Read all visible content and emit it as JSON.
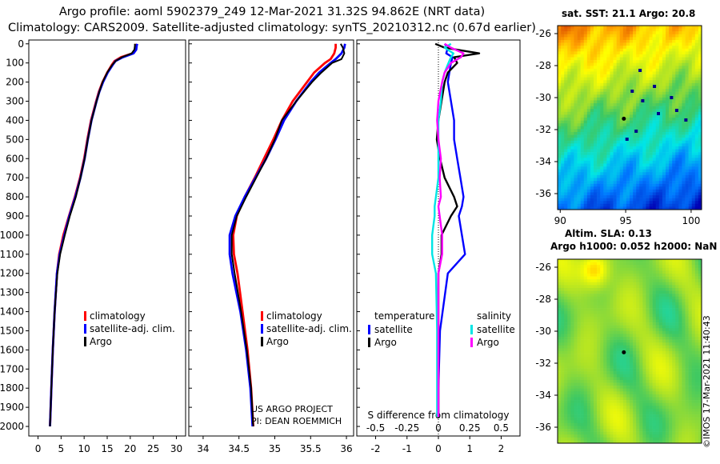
{
  "header": {
    "line1": "Argo profile: aoml 5902379_249 12-Mar-2021 31.32S 94.862E (NRT data)",
    "line2": "Climatology: CARS2009. Satellite-adjusted climatology: synTS_20210312.nc (0.67d earlier)"
  },
  "colors": {
    "climatology": "#ff0000",
    "satellite_adj": "#0000ff",
    "argo": "#000000",
    "salinity_satellite": "#00e5e5",
    "salinity_argo": "#ff00ff"
  },
  "chart_data": [
    {
      "id": "temperature",
      "type": "line",
      "xlim": [
        -2,
        32
      ],
      "ylim": [
        2050,
        -20
      ],
      "xticks": [
        "0",
        "5",
        "10",
        "15",
        "20",
        "25",
        "30"
      ],
      "yticks": [
        "0",
        "100",
        "200",
        "300",
        "400",
        "500",
        "600",
        "700",
        "800",
        "900",
        "1000",
        "1100",
        "1200",
        "1300",
        "1400",
        "1500",
        "1600",
        "1700",
        "1800",
        "1900",
        "2000"
      ],
      "legend": [
        "climatology",
        "satellite-adj. clim.",
        "Argo"
      ],
      "depth": [
        0,
        10,
        30,
        50,
        70,
        90,
        110,
        150,
        200,
        250,
        300,
        400,
        500,
        600,
        700,
        800,
        900,
        1000,
        1100,
        1200,
        1400,
        1600,
        1800,
        2000
      ],
      "series": [
        {
          "name": "climatology",
          "values": [
            21.2,
            21.2,
            21.1,
            20.5,
            18.0,
            16.6,
            16.0,
            15.0,
            14.0,
            13.2,
            12.6,
            11.5,
            10.7,
            10.0,
            9.1,
            8.0,
            6.7,
            5.5,
            4.6,
            4.1,
            3.6,
            3.2,
            2.9,
            2.6
          ]
        },
        {
          "name": "satellite-adj. clim.",
          "values": [
            21.5,
            21.4,
            21.3,
            20.7,
            18.4,
            16.8,
            16.2,
            15.1,
            14.1,
            13.3,
            12.7,
            11.6,
            10.8,
            10.1,
            9.2,
            8.1,
            6.8,
            5.7,
            4.7,
            4.1,
            3.6,
            3.2,
            2.9,
            2.6
          ]
        },
        {
          "name": "Argo",
          "values": [
            21.0,
            21.0,
            20.9,
            20.3,
            18.2,
            16.8,
            16.1,
            15.0,
            14.0,
            13.3,
            12.7,
            11.6,
            10.8,
            10.1,
            9.2,
            8.2,
            6.9,
            5.8,
            4.8,
            4.2,
            3.6,
            3.2,
            2.9,
            2.6
          ]
        }
      ]
    },
    {
      "id": "salinity",
      "type": "line",
      "xlim": [
        33.8,
        36.1
      ],
      "ylim": [
        2050,
        -20
      ],
      "xticks": [
        "34",
        "34.5",
        "35",
        "35.5",
        "36"
      ],
      "legend": [
        "climatology",
        "satellite-adj. clim.",
        "Argo"
      ],
      "annotation": [
        "US ARGO PROJECT",
        "PI: DEAN ROEMMICH"
      ],
      "depth": [
        0,
        20,
        50,
        80,
        100,
        150,
        200,
        300,
        400,
        500,
        600,
        700,
        800,
        900,
        1000,
        1100,
        1200,
        1400,
        1600,
        1800,
        2000
      ],
      "series": [
        {
          "name": "climatology",
          "values": [
            35.85,
            35.85,
            35.83,
            35.78,
            35.7,
            35.55,
            35.45,
            35.25,
            35.1,
            34.98,
            34.85,
            34.72,
            34.58,
            34.47,
            34.42,
            34.43,
            34.48,
            34.55,
            34.62,
            34.67,
            34.7
          ]
        },
        {
          "name": "satellite-adj. clim.",
          "values": [
            35.98,
            35.97,
            35.93,
            35.85,
            35.78,
            35.62,
            35.5,
            35.3,
            35.13,
            35.01,
            34.88,
            34.73,
            34.58,
            34.45,
            34.37,
            34.37,
            34.41,
            34.52,
            34.6,
            34.66,
            34.69
          ]
        },
        {
          "name": "Argo",
          "values": [
            35.92,
            35.95,
            35.97,
            35.93,
            35.8,
            35.65,
            35.52,
            35.3,
            35.1,
            35.0,
            34.88,
            34.74,
            34.6,
            34.47,
            34.4,
            34.4,
            34.44,
            34.53,
            34.61,
            34.67,
            34.7
          ]
        }
      ]
    },
    {
      "id": "difference",
      "type": "line",
      "xlim": [
        -2.6,
        2.6
      ],
      "ylim": [
        2050,
        -20
      ],
      "xticks_T": [
        "-2",
        "-1",
        "0",
        "1",
        "2"
      ],
      "xticks_S": [
        "-0.5",
        "-0.25",
        "0",
        "0.25",
        "0.5"
      ],
      "xlabel": "S difference from climatology",
      "legend_left_title": "temperature",
      "legend_right_title": "salinity",
      "legend_left": [
        "satellite",
        "Argo"
      ],
      "legend_right": [
        "satellite",
        "Argo"
      ],
      "depth": [
        0,
        20,
        50,
        70,
        100,
        150,
        200,
        300,
        400,
        500,
        600,
        700,
        800,
        850,
        900,
        1000,
        1100,
        1200,
        1500,
        1800,
        1950
      ],
      "series": [
        {
          "name": "temperature satellite",
          "values": [
            0.2,
            0.3,
            0.25,
            0.45,
            0.4,
            0.35,
            0.3,
            0.4,
            0.5,
            0.5,
            0.6,
            0.7,
            0.8,
            0.75,
            0.65,
            0.75,
            0.85,
            0.3,
            0.05,
            0.0,
            0.0
          ]
        },
        {
          "name": "temperature Argo",
          "values": [
            -0.1,
            0.2,
            1.3,
            0.5,
            0.6,
            0.3,
            0.2,
            0.1,
            0.0,
            -0.05,
            0.05,
            0.2,
            0.5,
            0.6,
            0.4,
            0.1,
            0.1,
            0.0,
            0.0,
            0.0,
            0.0
          ]
        },
        {
          "name": "salinity satellite",
          "values": [
            0.1,
            0.05,
            0.12,
            0.1,
            0.08,
            0.05,
            0.03,
            0.02,
            0.0,
            0.0,
            0.0,
            0.0,
            -0.02,
            -0.03,
            -0.03,
            -0.05,
            -0.05,
            -0.02,
            -0.01,
            -0.01,
            -0.01
          ]
        },
        {
          "name": "salinity Argo",
          "values": [
            0.05,
            0.1,
            0.2,
            0.18,
            0.1,
            0.05,
            0.03,
            0.0,
            -0.01,
            0.0,
            0.02,
            0.01,
            0.02,
            0.0,
            0.01,
            0.03,
            0.03,
            0.0,
            0.0,
            0.0,
            0.0
          ]
        }
      ]
    }
  ],
  "maps": {
    "sst": {
      "title": "sat.  SST: 21.1 Argo: 20.8",
      "yticks": [
        "-26",
        "-28",
        "-30",
        "-32",
        "-34",
        "-36"
      ],
      "xticks": [
        "90",
        "95",
        "100"
      ],
      "profile_lon": 94.862,
      "profile_lat": -31.32
    },
    "sla": {
      "title1": "Altim. SLA: 0.13",
      "title2": "Argo h1000: 0.052 h2000: NaN",
      "yticks": [
        "-26",
        "-28",
        "-30",
        "-32",
        "-34",
        "-36"
      ],
      "profile_lon": 94.862,
      "profile_lat": -31.32
    }
  },
  "watermark": "©IMOS 17-Mar-2021 11:40:43"
}
